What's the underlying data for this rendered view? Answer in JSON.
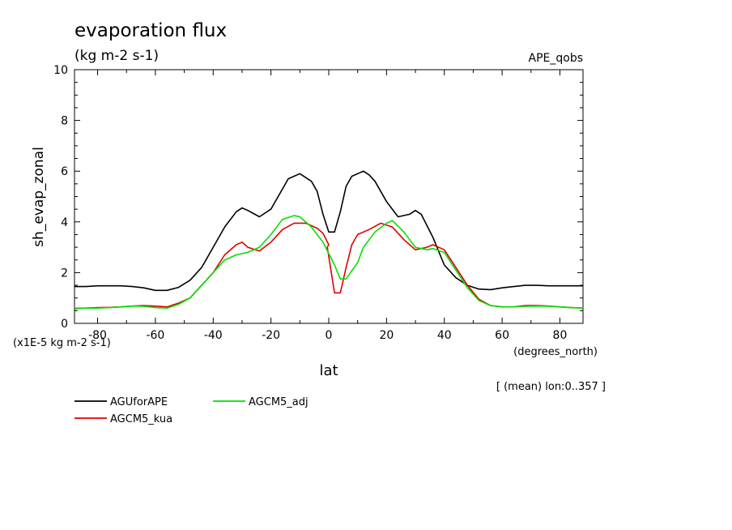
{
  "chart_data": {
    "type": "line",
    "title": "evaporation flux",
    "units_line": "(kg m-2 s-1)",
    "dataset_label": "APE_qobs",
    "ylabel": "sh_evap_zonal",
    "y_scale_note": "(x1E-5 kg m-2 s-1)",
    "xlabel": "lat",
    "x_units": "(degrees_north)",
    "footnote": "[ (mean) lon:0..357 ]",
    "xlim": [
      -88,
      88
    ],
    "ylim": [
      0,
      10
    ],
    "x_ticks": [
      -80,
      -60,
      -40,
      -20,
      0,
      20,
      40,
      60,
      80
    ],
    "y_ticks": [
      0,
      2,
      4,
      6,
      8,
      10
    ],
    "grid": false,
    "legend_position": "bottom-left",
    "series": [
      {
        "name": "AGUforAPE",
        "color": "#000000",
        "points": [
          [
            -88,
            1.45
          ],
          [
            -84,
            1.45
          ],
          [
            -80,
            1.48
          ],
          [
            -76,
            1.48
          ],
          [
            -72,
            1.48
          ],
          [
            -68,
            1.45
          ],
          [
            -64,
            1.4
          ],
          [
            -60,
            1.3
          ],
          [
            -56,
            1.3
          ],
          [
            -52,
            1.42
          ],
          [
            -48,
            1.7
          ],
          [
            -44,
            2.2
          ],
          [
            -40,
            3.0
          ],
          [
            -36,
            3.8
          ],
          [
            -32,
            4.4
          ],
          [
            -30,
            4.55
          ],
          [
            -28,
            4.45
          ],
          [
            -24,
            4.2
          ],
          [
            -20,
            4.5
          ],
          [
            -16,
            5.3
          ],
          [
            -14,
            5.7
          ],
          [
            -10,
            5.9
          ],
          [
            -6,
            5.6
          ],
          [
            -4,
            5.2
          ],
          [
            -2,
            4.3
          ],
          [
            0,
            3.6
          ],
          [
            2,
            3.6
          ],
          [
            4,
            4.4
          ],
          [
            6,
            5.4
          ],
          [
            8,
            5.8
          ],
          [
            12,
            6.0
          ],
          [
            14,
            5.85
          ],
          [
            16,
            5.6
          ],
          [
            20,
            4.8
          ],
          [
            24,
            4.2
          ],
          [
            28,
            4.3
          ],
          [
            30,
            4.45
          ],
          [
            32,
            4.3
          ],
          [
            36,
            3.4
          ],
          [
            40,
            2.3
          ],
          [
            44,
            1.8
          ],
          [
            48,
            1.5
          ],
          [
            52,
            1.35
          ],
          [
            56,
            1.33
          ],
          [
            60,
            1.4
          ],
          [
            64,
            1.45
          ],
          [
            68,
            1.5
          ],
          [
            72,
            1.5
          ],
          [
            76,
            1.48
          ],
          [
            80,
            1.48
          ],
          [
            84,
            1.48
          ],
          [
            88,
            1.48
          ]
        ]
      },
      {
        "name": "AGCM5_kua",
        "color": "#e00000",
        "points": [
          [
            -88,
            0.58
          ],
          [
            -84,
            0.6
          ],
          [
            -80,
            0.62
          ],
          [
            -76,
            0.63
          ],
          [
            -72,
            0.65
          ],
          [
            -68,
            0.68
          ],
          [
            -64,
            0.7
          ],
          [
            -60,
            0.68
          ],
          [
            -56,
            0.65
          ],
          [
            -52,
            0.8
          ],
          [
            -48,
            1.0
          ],
          [
            -44,
            1.5
          ],
          [
            -40,
            2.0
          ],
          [
            -36,
            2.7
          ],
          [
            -32,
            3.1
          ],
          [
            -30,
            3.2
          ],
          [
            -28,
            3.0
          ],
          [
            -24,
            2.85
          ],
          [
            -20,
            3.2
          ],
          [
            -16,
            3.7
          ],
          [
            -12,
            3.95
          ],
          [
            -8,
            3.95
          ],
          [
            -4,
            3.75
          ],
          [
            -2,
            3.55
          ],
          [
            0,
            3.1
          ],
          [
            -0.5,
            3.0
          ],
          [
            2,
            1.2
          ],
          [
            4,
            1.2
          ],
          [
            6,
            2.2
          ],
          [
            8,
            3.1
          ],
          [
            10,
            3.5
          ],
          [
            14,
            3.7
          ],
          [
            18,
            3.95
          ],
          [
            22,
            3.8
          ],
          [
            26,
            3.3
          ],
          [
            30,
            2.9
          ],
          [
            34,
            3.0
          ],
          [
            36,
            3.1
          ],
          [
            40,
            2.9
          ],
          [
            44,
            2.2
          ],
          [
            48,
            1.5
          ],
          [
            52,
            0.95
          ],
          [
            56,
            0.7
          ],
          [
            60,
            0.65
          ],
          [
            64,
            0.65
          ],
          [
            68,
            0.7
          ],
          [
            72,
            0.7
          ],
          [
            76,
            0.68
          ],
          [
            80,
            0.65
          ],
          [
            84,
            0.62
          ],
          [
            88,
            0.6
          ]
        ]
      },
      {
        "name": "AGCM5_adj",
        "color": "#00e000",
        "points": [
          [
            -88,
            0.6
          ],
          [
            -84,
            0.6
          ],
          [
            -80,
            0.6
          ],
          [
            -76,
            0.62
          ],
          [
            -72,
            0.65
          ],
          [
            -68,
            0.68
          ],
          [
            -64,
            0.67
          ],
          [
            -60,
            0.62
          ],
          [
            -56,
            0.6
          ],
          [
            -52,
            0.75
          ],
          [
            -48,
            1.0
          ],
          [
            -44,
            1.5
          ],
          [
            -40,
            2.0
          ],
          [
            -36,
            2.5
          ],
          [
            -32,
            2.7
          ],
          [
            -28,
            2.8
          ],
          [
            -24,
            3.0
          ],
          [
            -20,
            3.5
          ],
          [
            -16,
            4.1
          ],
          [
            -12,
            4.25
          ],
          [
            -10,
            4.2
          ],
          [
            -6,
            3.8
          ],
          [
            -2,
            3.2
          ],
          [
            2,
            2.3
          ],
          [
            4,
            1.75
          ],
          [
            6,
            1.75
          ],
          [
            10,
            2.4
          ],
          [
            12,
            3.0
          ],
          [
            16,
            3.6
          ],
          [
            20,
            3.95
          ],
          [
            22,
            4.05
          ],
          [
            26,
            3.6
          ],
          [
            30,
            3.0
          ],
          [
            34,
            2.9
          ],
          [
            36,
            2.95
          ],
          [
            40,
            2.8
          ],
          [
            44,
            2.1
          ],
          [
            48,
            1.4
          ],
          [
            52,
            0.9
          ],
          [
            56,
            0.7
          ],
          [
            60,
            0.65
          ],
          [
            64,
            0.65
          ],
          [
            68,
            0.67
          ],
          [
            72,
            0.68
          ],
          [
            76,
            0.67
          ],
          [
            80,
            0.65
          ],
          [
            84,
            0.62
          ],
          [
            88,
            0.6
          ]
        ]
      }
    ]
  }
}
